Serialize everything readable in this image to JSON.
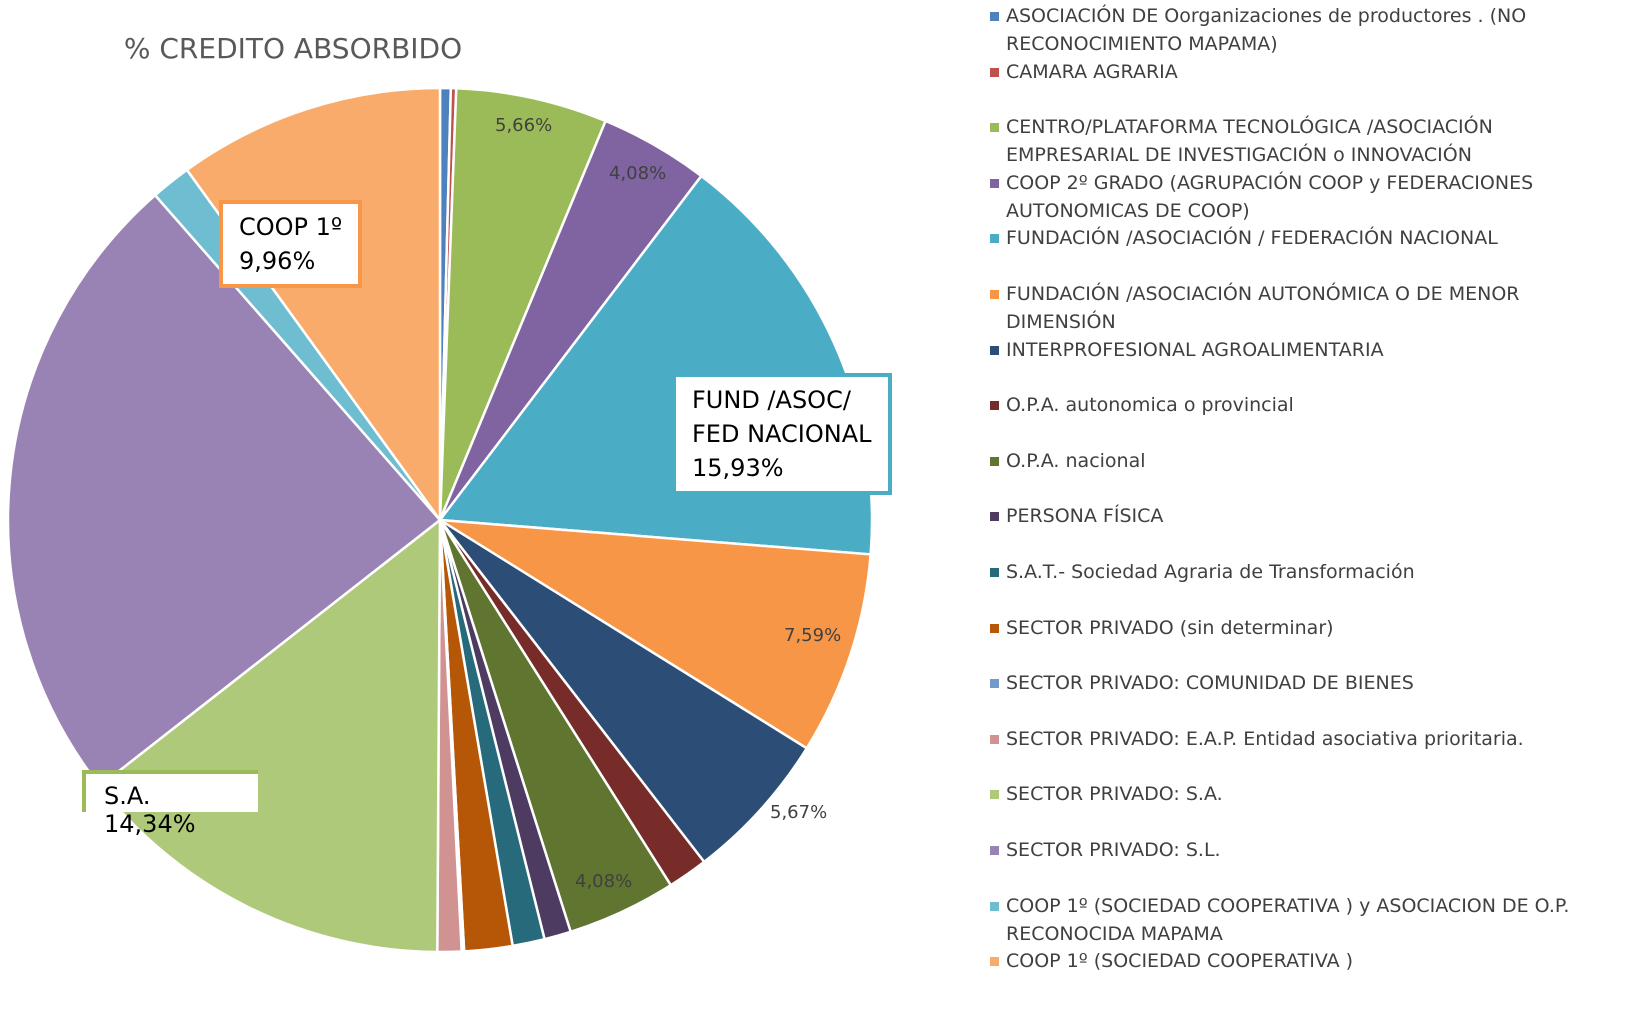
{
  "chart_data": {
    "type": "pie",
    "title": "% CREDITO ABSORBIDO",
    "categories": [
      "ASOCIACIÓN DE Oorganizaciones de productores . (NO RECONOCIMIENTO MAPAMA)",
      "CAMARA AGRARIA",
      "CENTRO/PLATAFORMA TECNOLÓGICA /ASOCIACIÓN EMPRESARIAL DE INVESTIGACIÓN  o INNOVACIÓN",
      "COOP 2º GRADO (AGRUPACIÓN COOP y FEDERACIONES AUTONOMICAS DE COOP)",
      "FUNDACIÓN /ASOCIACIÓN / FEDERACIÓN  NACIONAL",
      "FUNDACIÓN /ASOCIACIÓN AUTONÓMICA O DE MENOR DIMENSIÓN",
      "INTERPROFESIONAL AGROALIMENTARIA",
      "O.P.A. autonomica o provincial",
      "O.P.A. nacional",
      "PERSONA FÍSICA",
      "S.A.T.- Sociedad Agraria de Transformación",
      "SECTOR PRIVADO (sin determinar)",
      "SECTOR PRIVADO: COMUNIDAD DE BIENES",
      "SECTOR PRIVADO: E.A.P. Entidad asociativa prioritaria.",
      "SECTOR PRIVADO: S.A.",
      "SECTOR PRIVADO: S.L.",
      "COOP 1º (SOCIEDAD COOPERATIVA ) y ASOCIACION DE O.P. RECONOCIDA MAPAMA",
      "COOP 1º (SOCIEDAD COOPERATIVA )"
    ],
    "values": [
      0.4,
      0.2,
      5.66,
      4.08,
      15.93,
      7.59,
      5.67,
      1.5,
      4.08,
      1.0,
      1.2,
      1.8,
      0.09,
      0.9,
      14.34,
      24.1,
      1.5,
      9.96
    ],
    "value_labels": [
      null,
      null,
      "5,66%",
      "4,08%",
      "FUND /ASOC/\nFED NACIONAL\n15,93%",
      "7,59%",
      "5,67%",
      null,
      "4,08%",
      null,
      null,
      null,
      null,
      null,
      "S.A. 14,34%",
      null,
      null,
      "COOP 1º\n9,96%"
    ],
    "colors": [
      "#4f81bd",
      "#c0504d",
      "#9bbb59",
      "#8064a2",
      "#4bacc6",
      "#f79646",
      "#2c4d75",
      "#772c2a",
      "#5f7530",
      "#4d3b62",
      "#276a7c",
      "#b65708",
      "#729aca",
      "#d19392",
      "#afc97a",
      "#9983b5",
      "#6fbdd1",
      "#f9ab6b"
    ],
    "legend": "right"
  }
}
